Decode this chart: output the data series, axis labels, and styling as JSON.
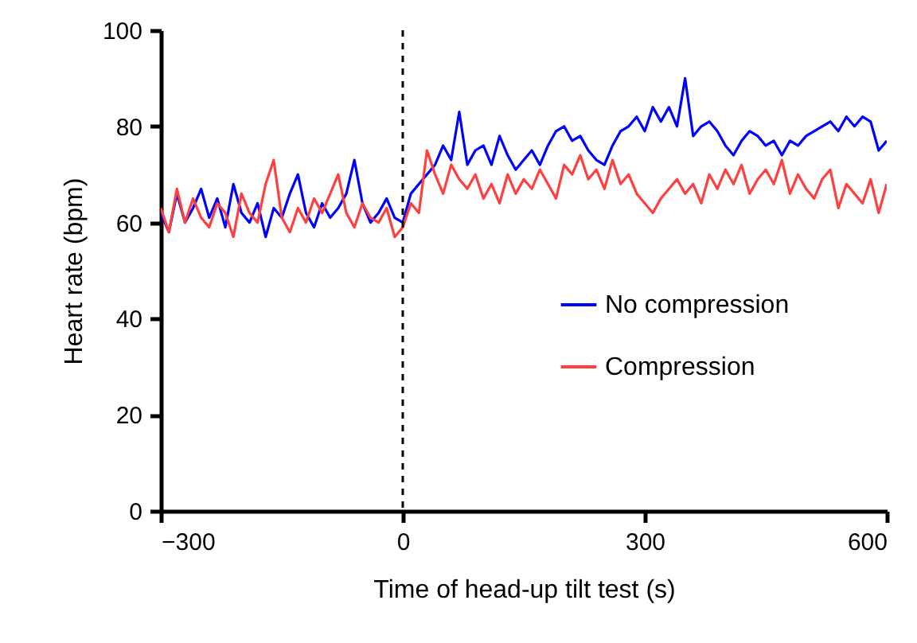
{
  "chart_data": {
    "type": "line",
    "xlabel": "Time of head-up tilt test (s)",
    "ylabel": "Heart rate (bpm)",
    "x": [
      -300,
      -290,
      -280,
      -270,
      -260,
      -250,
      -240,
      -230,
      -220,
      -210,
      -200,
      -190,
      -180,
      -170,
      -160,
      -150,
      -140,
      -130,
      -120,
      -110,
      -100,
      -90,
      -80,
      -70,
      -60,
      -50,
      -40,
      -30,
      -20,
      -10,
      0,
      10,
      20,
      30,
      40,
      50,
      60,
      70,
      80,
      90,
      100,
      110,
      120,
      130,
      140,
      150,
      160,
      170,
      180,
      190,
      200,
      210,
      220,
      230,
      240,
      250,
      260,
      270,
      280,
      290,
      300,
      310,
      320,
      330,
      340,
      350,
      360,
      370,
      380,
      390,
      400,
      410,
      420,
      430,
      440,
      450,
      460,
      470,
      480,
      490,
      500,
      510,
      520,
      530,
      540,
      550,
      560,
      570,
      580,
      590,
      600
    ],
    "series": [
      {
        "name": "No compression",
        "color": "#0000ff",
        "values": [
          62,
          58,
          66,
          60,
          63,
          67,
          61,
          65,
          59,
          68,
          62,
          60,
          64,
          57,
          63,
          61,
          66,
          70,
          62,
          59,
          64,
          61,
          63,
          66,
          73,
          64,
          60,
          62,
          65,
          61,
          60,
          66,
          68,
          70,
          72,
          76,
          73,
          83,
          72,
          75,
          76,
          72,
          78,
          74,
          71,
          73,
          75,
          72,
          76,
          79,
          80,
          77,
          78,
          75,
          73,
          72,
          76,
          79,
          80,
          82,
          79,
          84,
          81,
          84,
          80,
          90,
          78,
          80,
          81,
          79,
          76,
          74,
          77,
          79,
          78,
          76,
          77,
          74,
          77,
          76,
          78,
          79,
          80,
          81,
          79,
          82,
          80,
          82,
          81,
          75,
          77
        ]
      },
      {
        "name": "Compression",
        "color": "#ff4040",
        "values": [
          63,
          58,
          67,
          60,
          65,
          61,
          59,
          64,
          62,
          57,
          66,
          62,
          60,
          68,
          73,
          61,
          58,
          63,
          60,
          65,
          62,
          66,
          70,
          62,
          59,
          64,
          61,
          60,
          63,
          57,
          59,
          64,
          62,
          75,
          70,
          66,
          72,
          69,
          67,
          70,
          65,
          68,
          64,
          70,
          66,
          69,
          67,
          71,
          68,
          65,
          72,
          70,
          74,
          69,
          71,
          67,
          73,
          68,
          70,
          66,
          64,
          62,
          65,
          67,
          69,
          66,
          68,
          64,
          70,
          67,
          71,
          68,
          72,
          66,
          69,
          71,
          68,
          73,
          66,
          70,
          67,
          65,
          69,
          71,
          63,
          68,
          66,
          64,
          69,
          62,
          68
        ]
      }
    ],
    "xlim": [
      -300,
      600
    ],
    "xticks": [
      -300,
      0,
      300,
      600
    ],
    "ylim": [
      0,
      100
    ],
    "yticks": [
      0,
      20,
      40,
      60,
      80,
      100
    ],
    "ref_lines": [
      {
        "axis": "x",
        "value": 0,
        "color": "#000000",
        "line_style": "dashed"
      }
    ],
    "grid": false,
    "legend": "right",
    "marker": "none",
    "line_style": "solid"
  }
}
